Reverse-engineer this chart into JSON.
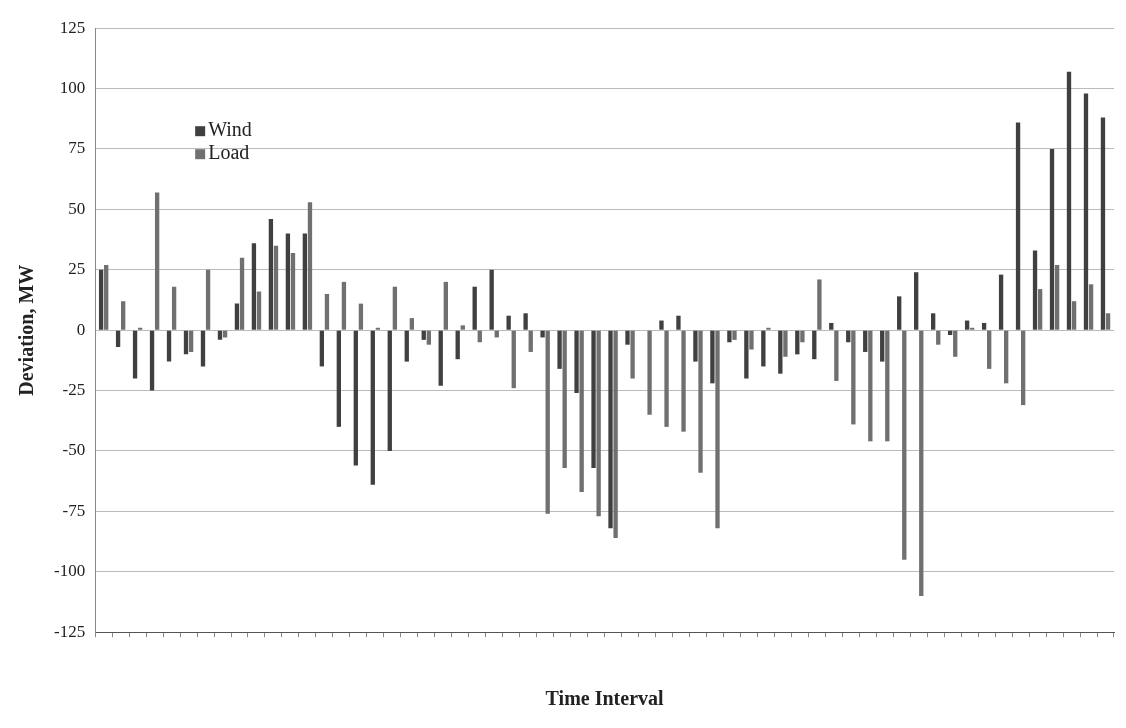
{
  "chart_data": {
    "type": "bar",
    "xlabel": "Time Interval",
    "ylabel": "Deviation, MW",
    "categories": [
      null,
      null,
      null,
      null,
      null,
      null,
      null,
      null,
      null,
      null,
      null,
      null,
      null,
      null,
      null,
      null,
      null,
      null,
      null,
      null,
      null,
      null,
      null,
      null,
      null,
      null,
      null,
      null,
      null,
      null,
      null,
      null,
      null,
      null,
      null,
      null,
      null,
      null,
      null,
      null,
      null,
      null,
      null,
      null,
      null,
      null,
      null,
      null,
      null,
      null,
      null,
      null,
      null,
      null,
      null,
      null,
      null,
      null,
      null,
      null
    ],
    "series": [
      {
        "name": "Wind",
        "color": "#404040",
        "values": [
          25,
          -7,
          -20,
          -25,
          -13,
          -10,
          -15,
          -4,
          11,
          36,
          46,
          40,
          40,
          -15,
          -40,
          -56,
          -64,
          -50,
          -13,
          -4,
          -23,
          -12,
          18,
          25,
          6,
          7,
          -3,
          -16,
          -26,
          -57,
          -82,
          -6,
          0,
          4,
          6,
          -13,
          -22,
          -5,
          -20,
          -15,
          -18,
          -10,
          -12,
          3,
          -5,
          -9,
          -13,
          14,
          24,
          7,
          -2,
          4,
          3,
          23,
          86,
          33,
          75,
          107,
          98,
          88
        ]
      },
      {
        "name": "Load",
        "color": "#707070",
        "values": [
          27,
          12,
          1,
          57,
          18,
          -9,
          25,
          -3,
          30,
          16,
          35,
          32,
          53,
          15,
          20,
          11,
          1,
          18,
          5,
          -6,
          20,
          2,
          -5,
          -3,
          -24,
          -9,
          -76,
          -57,
          -67,
          -77,
          -86,
          -20,
          -35,
          -40,
          -42,
          -59,
          -82,
          -4,
          -8,
          1,
          -11,
          -5,
          21,
          -21,
          -39,
          -46,
          -46,
          -95,
          -110,
          -6,
          -11,
          1,
          -16,
          -22,
          -31,
          17,
          27,
          12,
          19,
          7
        ]
      }
    ],
    "ylim": [
      -125,
      125
    ],
    "yticks": [
      -125,
      -100,
      -75,
      -50,
      -25,
      0,
      25,
      50,
      75,
      100,
      125
    ],
    "grid": "y",
    "legend": "top left"
  }
}
